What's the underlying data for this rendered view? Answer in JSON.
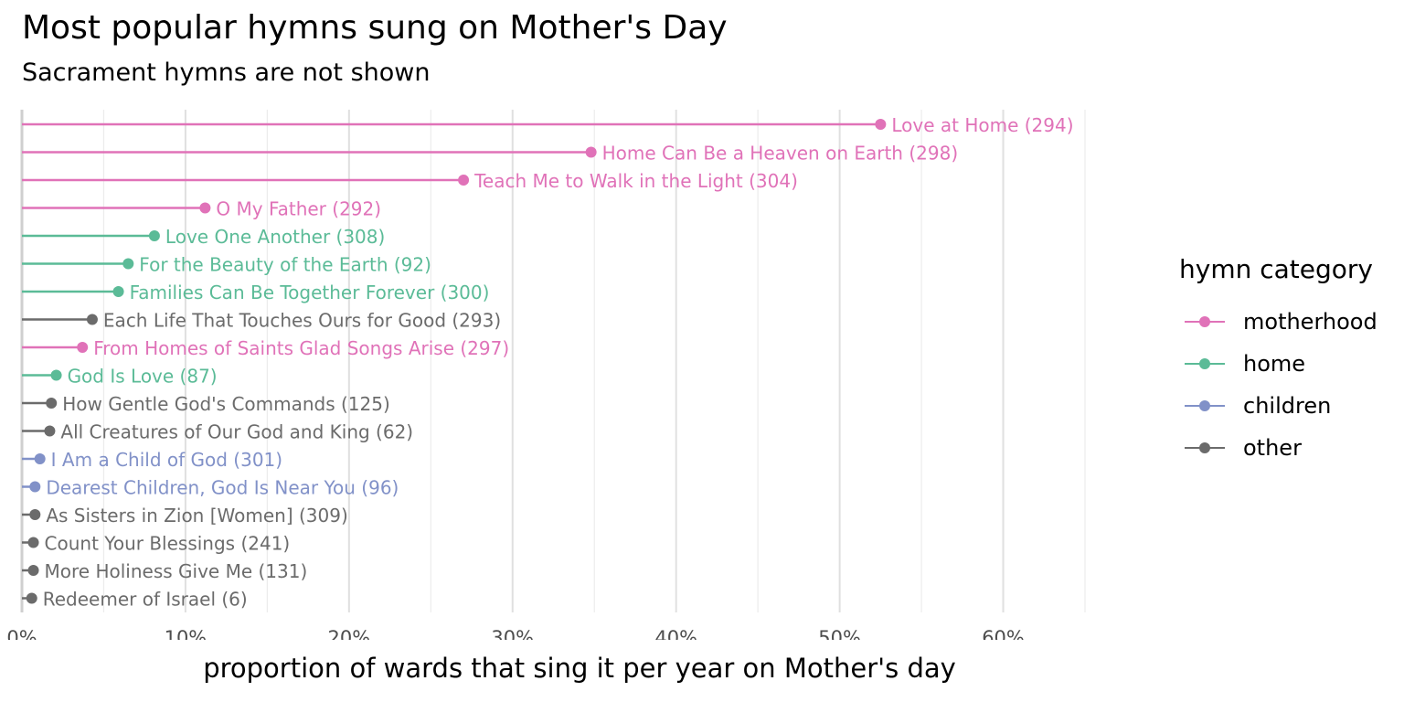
{
  "chart_data": {
    "type": "lollipop",
    "title": "Most popular hymns sung on Mother's Day",
    "subtitle": "Sacrament hymns are not shown",
    "xlabel": "proportion of wards that sing it per year on Mother's day",
    "xlim": [
      0,
      0.65
    ],
    "x_ticks": [
      0,
      0.1,
      0.2,
      0.3,
      0.4,
      0.5,
      0.6
    ],
    "x_tick_labels": [
      "0%",
      "10%",
      "20%",
      "30%",
      "40%",
      "50%",
      "60%"
    ],
    "grid": true,
    "legend": {
      "title": "hymn category",
      "position": "right",
      "entries": [
        {
          "name": "motherhood",
          "color": "#e072b8"
        },
        {
          "name": "home",
          "color": "#5bbb97"
        },
        {
          "name": "children",
          "color": "#8191c8"
        },
        {
          "name": "other",
          "color": "#6b6b6b"
        }
      ]
    },
    "points": [
      {
        "label": "Love at Home (294)",
        "value": 0.525,
        "category": "motherhood"
      },
      {
        "label": "Home Can Be a Heaven on Earth (298)",
        "value": 0.348,
        "category": "motherhood"
      },
      {
        "label": "Teach Me to Walk in the Light (304)",
        "value": 0.27,
        "category": "motherhood"
      },
      {
        "label": "O My Father (292)",
        "value": 0.112,
        "category": "motherhood"
      },
      {
        "label": "Love One Another (308)",
        "value": 0.081,
        "category": "home"
      },
      {
        "label": "For the Beauty of the Earth (92)",
        "value": 0.065,
        "category": "home"
      },
      {
        "label": "Families Can Be Together Forever (300)",
        "value": 0.059,
        "category": "home"
      },
      {
        "label": "Each Life That Touches Ours for Good (293)",
        "value": 0.043,
        "category": "other"
      },
      {
        "label": "From Homes of Saints Glad Songs Arise (297)",
        "value": 0.037,
        "category": "motherhood"
      },
      {
        "label": "God Is Love (87)",
        "value": 0.021,
        "category": "home"
      },
      {
        "label": "How Gentle God's Commands (125)",
        "value": 0.018,
        "category": "other"
      },
      {
        "label": "All Creatures of Our God and King (62)",
        "value": 0.017,
        "category": "other"
      },
      {
        "label": "I Am a Child of God (301)",
        "value": 0.011,
        "category": "children"
      },
      {
        "label": "Dearest Children, God Is Near You (96)",
        "value": 0.008,
        "category": "children"
      },
      {
        "label": "As Sisters in Zion [Women] (309)",
        "value": 0.008,
        "category": "other"
      },
      {
        "label": "Count Your Blessings (241)",
        "value": 0.007,
        "category": "other"
      },
      {
        "label": "More Holiness Give Me (131)",
        "value": 0.007,
        "category": "other"
      },
      {
        "label": "Redeemer of Israel (6)",
        "value": 0.006,
        "category": "other"
      }
    ]
  }
}
